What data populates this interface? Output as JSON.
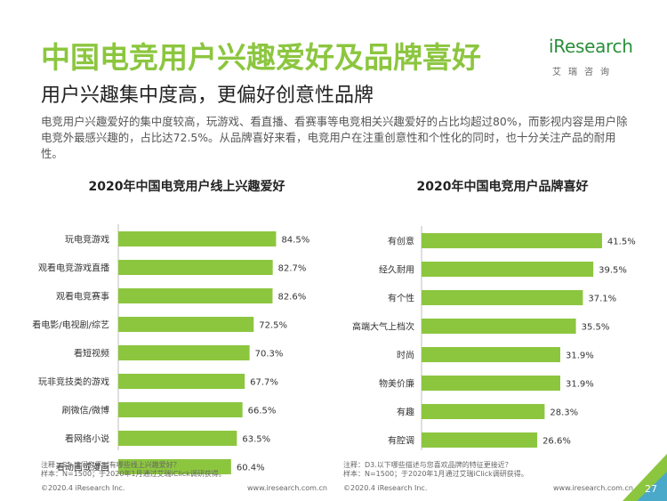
{
  "title": "中国电竞用户兴趣爱好及品牌喜好",
  "subtitle": "用户兴趣集中度高，更偏好创意性品牌",
  "description": "电竞用户兴趣爱好的集中度较高，玩游戏、看直播、看赛事等电竞相关兴趣爱好的占比均超过80%，而影视内容是用户除电竞外最感兴趣的，占比达72.5%。从品牌喜好来看，电竞用户在注重创意性和个性化的同时，也十分关注产品的耐用性。",
  "logo": {
    "main": "iResearch",
    "sub": "艾瑞咨询"
  },
  "colors": {
    "accent": "#8cc63f",
    "bar": "#8cc63f"
  },
  "chart_data": [
    {
      "type": "bar",
      "orientation": "horizontal",
      "title": "2020年中国电竞用户线上兴趣爱好",
      "categories": [
        "玩电竞游戏",
        "观看电竞游戏直播",
        "观看电竞赛事",
        "看电影/电视剧/综艺",
        "看短视频",
        "玩非竞技类的游戏",
        "刷微信/微博",
        "看网络小说",
        "看动画或漫画"
      ],
      "values": [
        84.5,
        82.7,
        82.6,
        72.5,
        70.3,
        67.7,
        66.5,
        63.5,
        60.4
      ],
      "value_labels": [
        "84.5%",
        "82.7%",
        "82.6%",
        "72.5%",
        "70.3%",
        "67.7%",
        "66.5%",
        "63.5%",
        "60.4%"
      ],
      "unit": "%",
      "xlim": [
        0,
        100
      ]
    },
    {
      "type": "bar",
      "orientation": "horizontal",
      "title": "2020年中国电竞用户品牌喜好",
      "categories": [
        "有创意",
        "经久耐用",
        "有个性",
        "高端大气上档次",
        "时尚",
        "物美价廉",
        "有趣",
        "有腔调"
      ],
      "values": [
        41.5,
        39.5,
        37.1,
        35.5,
        31.9,
        31.9,
        28.3,
        26.6
      ],
      "value_labels": [
        "41.5%",
        "39.5%",
        "37.1%",
        "35.5%",
        "31.9%",
        "31.9%",
        "28.3%",
        "26.6%"
      ],
      "unit": "%",
      "xlim": [
        0,
        50
      ]
    }
  ],
  "notes": [
    {
      "line1": "注释：S1.请问您平时有哪些线上兴趣爱好？",
      "line2": "样本：N=1500；于2020年1月通过艾瑞iClick调研获得。"
    },
    {
      "line1": "注释：D3.以下哪些描述与您喜欢品牌的特征更接近？",
      "line2": "样本：N=1500；于2020年1月通过艾瑞iClick调研获得。"
    }
  ],
  "footer": {
    "left_copyright": "©2020.4 iResearch Inc.",
    "left_url": "www.iresearch.com.cn",
    "right_copyright": "©2020.4 iResearch Inc.",
    "right_url": "www.iresearch.com.cn",
    "page_number": "27"
  }
}
